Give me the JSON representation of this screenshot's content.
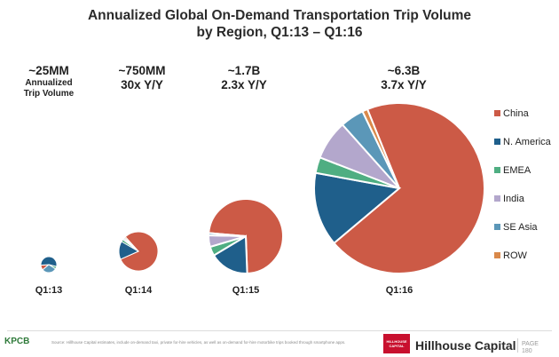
{
  "chart_data": {
    "type": "pie",
    "title": "Annualized Global On-Demand Transportation Trip Volume",
    "subtitle": "by Region, Q1:13 – Q1:16",
    "legend_position": "right",
    "series_names": [
      "China",
      "N. America",
      "EMEA",
      "India",
      "SE Asia",
      "ROW"
    ],
    "series_colors": [
      "#cc5a46",
      "#1f5f8b",
      "#4fae82",
      "#b3a7cc",
      "#5b97b8",
      "#d9894a"
    ],
    "pies": [
      {
        "label": "Q1:13",
        "annotation": [
          "~25MM",
          "Annualized",
          "Trip Volume"
        ],
        "values": [
          10,
          55,
          5,
          0,
          30,
          0
        ]
      },
      {
        "label": "Q1:14",
        "annotation": [
          "~750MM",
          "30x Y/Y"
        ],
        "values": [
          80,
          15,
          2,
          1,
          1,
          1
        ]
      },
      {
        "label": "Q1:15",
        "annotation": [
          "~1.7B",
          "2.3x Y/Y"
        ],
        "values": [
          73,
          17,
          4,
          5,
          1,
          0
        ]
      },
      {
        "label": "Q1:16",
        "annotation": [
          "~6.3B",
          "3.7x Y/Y"
        ],
        "values": [
          70,
          14,
          3,
          7.5,
          4.5,
          1
        ]
      }
    ]
  },
  "footer": {
    "kpcb": "KPCB",
    "source_note": "Source: Hillhouse Capital estimates, include on-demand taxi, private for-hire vehicles, as well as on-demand for-hire motorbike trips booked through smartphone apps.",
    "logo_text": "HILLHOUSE CAPITAL",
    "brand": "Hillhouse Capital",
    "page_label": "PAGE",
    "page_number": "180"
  }
}
